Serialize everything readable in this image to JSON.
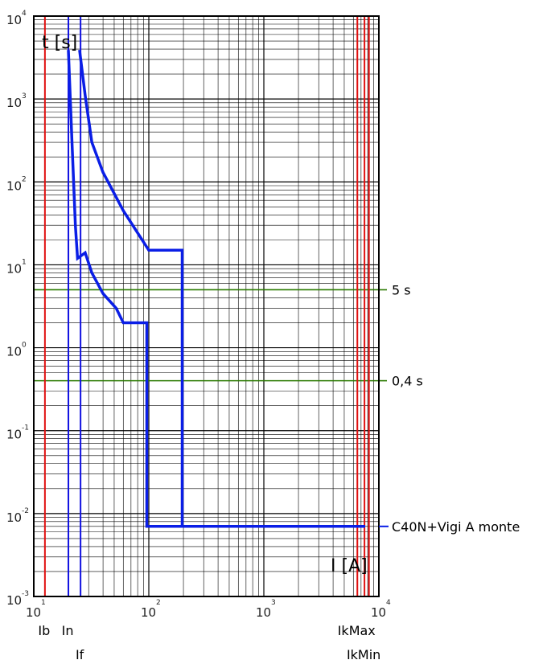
{
  "chart_data": {
    "type": "line",
    "title": "",
    "xlabel": "I [A]",
    "ylabel": "t [s]",
    "x_scale": "log",
    "y_scale": "log",
    "xlim": [
      10,
      10000
    ],
    "ylim": [
      0.001,
      10000
    ],
    "grid": true,
    "x_ticks": [
      {
        "base": "10",
        "exp": "1"
      },
      {
        "base": "10",
        "exp": "2"
      },
      {
        "base": "10",
        "exp": "3"
      },
      {
        "base": "10",
        "exp": "4"
      }
    ],
    "y_ticks": [
      {
        "base": "10",
        "exp": "-3"
      },
      {
        "base": "10",
        "exp": "-2"
      },
      {
        "base": "10",
        "exp": "-1"
      },
      {
        "base": "10",
        "exp": "0"
      },
      {
        "base": "10",
        "exp": "1"
      },
      {
        "base": "10",
        "exp": "2"
      },
      {
        "base": "10",
        "exp": "3"
      },
      {
        "base": "10",
        "exp": "4"
      }
    ],
    "series": [
      {
        "name": "C40N+Vigi A monte",
        "color": "#0a1ee6",
        "lower_curve": [
          [
            20,
            3900
          ],
          [
            21.5,
            300
          ],
          [
            23,
            30
          ],
          [
            24,
            12
          ],
          [
            28,
            14
          ],
          [
            32,
            8
          ],
          [
            40,
            4.5
          ],
          [
            52,
            3.0
          ],
          [
            60,
            2.0
          ],
          [
            96,
            2.0
          ],
          [
            96,
            0.007
          ],
          [
            7600,
            0.007
          ]
        ],
        "upper_curve": [
          [
            25,
            3900
          ],
          [
            28,
            1100
          ],
          [
            32,
            300
          ],
          [
            40,
            130
          ],
          [
            60,
            45
          ],
          [
            100,
            15
          ],
          [
            195,
            15
          ],
          [
            195,
            0.007
          ],
          [
            7600,
            0.007
          ]
        ]
      }
    ],
    "vertical_markers": [
      {
        "label": "Ib",
        "value": 12.5,
        "color": "#e01010",
        "label_row": 1
      },
      {
        "label": "In",
        "value": 20,
        "color": "#1010e0",
        "label_row": 1
      },
      {
        "label": "If",
        "value": 25.5,
        "color": "#1010e0",
        "label_row": 2
      },
      {
        "label": "IkMax",
        "value": 6500,
        "color": "#e01010",
        "label_row": 1
      },
      {
        "label": "IkMin",
        "value": 7500,
        "color": "#e01010",
        "label_row": 2
      },
      {
        "label": "",
        "value": 8200,
        "color": "#e01010",
        "label_row": 0
      }
    ],
    "horizontal_markers": [
      {
        "label": "5 s",
        "value": 5,
        "color": "#2a7a00"
      },
      {
        "label": "0,4 s",
        "value": 0.4,
        "color": "#2a7a00"
      }
    ],
    "annotations": [
      {
        "text": "C40N+Vigi A monte",
        "value": 0.007
      }
    ]
  }
}
